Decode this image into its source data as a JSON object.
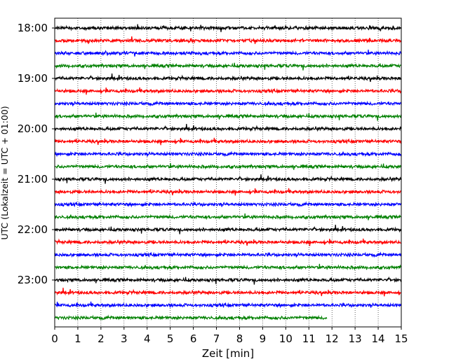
{
  "chart_data": {
    "type": "line",
    "title": "",
    "xlabel": "Zeit  [min]",
    "ylabel": "UTC (Lokalzeit = UTC + 01:00)",
    "xlim": [
      0,
      15
    ],
    "x_ticks": [
      0,
      1,
      2,
      3,
      4,
      5,
      6,
      7,
      8,
      9,
      10,
      11,
      12,
      13,
      14,
      15
    ],
    "x_tick_labels": [
      "0",
      "1",
      "2",
      "3",
      "4",
      "5",
      "6",
      "7",
      "8",
      "9",
      "10",
      "11",
      "12",
      "13",
      "14",
      "15"
    ],
    "y_tick_labels": [
      "18:00",
      "19:00",
      "20:00",
      "21:00",
      "22:00",
      "23:00"
    ],
    "grid": "vertical dotted",
    "trace_interval_minutes": 15,
    "first_trace": "18:00",
    "trace_colors": [
      "#000000",
      "#ff0000",
      "#0000ff",
      "#008000"
    ],
    "traces": [
      {
        "start": "18:00",
        "end_minute": 15
      },
      {
        "start": "18:15",
        "end_minute": 15
      },
      {
        "start": "18:30",
        "end_minute": 15
      },
      {
        "start": "18:45",
        "end_minute": 15
      },
      {
        "start": "19:00",
        "end_minute": 15
      },
      {
        "start": "19:15",
        "end_minute": 15
      },
      {
        "start": "19:30",
        "end_minute": 15
      },
      {
        "start": "19:45",
        "end_minute": 15
      },
      {
        "start": "20:00",
        "end_minute": 15
      },
      {
        "start": "20:15",
        "end_minute": 15
      },
      {
        "start": "20:30",
        "end_minute": 15
      },
      {
        "start": "20:45",
        "end_minute": 15
      },
      {
        "start": "21:00",
        "end_minute": 15
      },
      {
        "start": "21:15",
        "end_minute": 15
      },
      {
        "start": "21:30",
        "end_minute": 15
      },
      {
        "start": "21:45",
        "end_minute": 15
      },
      {
        "start": "22:00",
        "end_minute": 15
      },
      {
        "start": "22:15",
        "end_minute": 15
      },
      {
        "start": "22:30",
        "end_minute": 15
      },
      {
        "start": "22:45",
        "end_minute": 15
      },
      {
        "start": "23:00",
        "end_minute": 15
      },
      {
        "start": "23:15",
        "end_minute": 15
      },
      {
        "start": "23:30",
        "end_minute": 15
      },
      {
        "start": "23:45",
        "end_minute": 11.8
      }
    ]
  }
}
